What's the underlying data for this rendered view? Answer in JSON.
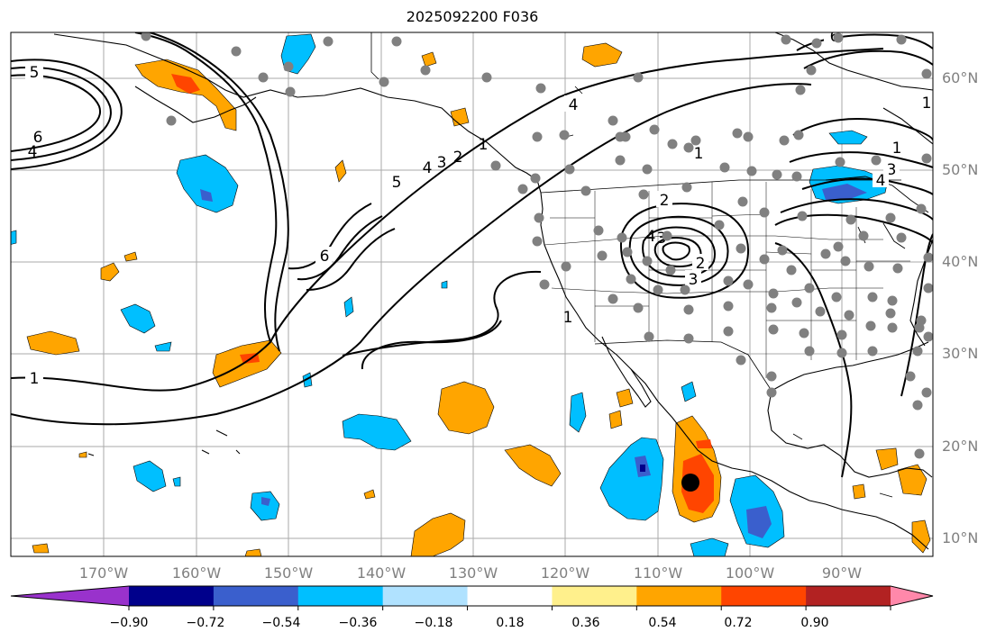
{
  "title": "2025092200 F036",
  "latitude_labels": [
    "60°N",
    "50°N",
    "40°N",
    "30°N",
    "20°N",
    "10°N"
  ],
  "longitude_labels": [
    "170°W",
    "160°W",
    "150°W",
    "140°W",
    "130°W",
    "120°W",
    "110°W",
    "100°W",
    "90°W"
  ],
  "contour_labels": [
    "5",
    "6",
    "4",
    "1",
    "5",
    "4",
    "3",
    "2",
    "1",
    "6",
    "4",
    "1",
    "2",
    "4",
    "3",
    "2",
    "1",
    "3",
    "6",
    "1",
    "3",
    "4",
    "1"
  ],
  "colorbar": {
    "tick_labels": [
      "−0.90",
      "−0.72",
      "−0.54",
      "−0.36",
      "−0.18",
      "0.18",
      "0.36",
      "0.54",
      "0.72",
      "0.90"
    ],
    "colors": [
      "#9932cc",
      "#00008b",
      "#3a5fcd",
      "#00bfff",
      "#b0e2ff",
      "#ffffff",
      "#fff08c",
      "#ffa500",
      "#ff4500",
      "#b22222",
      "#ff88aa"
    ]
  },
  "marker_colors": {
    "station": "#808080",
    "center": "#000000"
  }
}
